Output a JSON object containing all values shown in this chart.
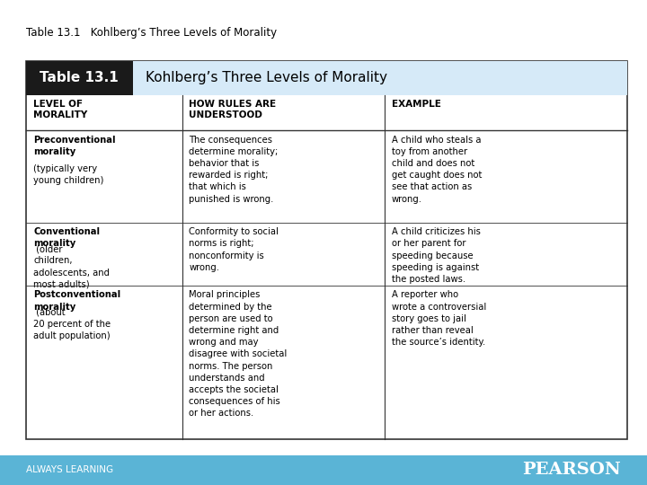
{
  "title_above": "Table 13.1   Kohlberg’s Three Levels of Morality",
  "header_box_label": "Table 13.1",
  "header_title": "Kohlberg’s Three Levels of Morality",
  "col_headers": [
    "LEVEL OF\nMORALITY",
    "HOW RULES ARE\nUNDERSTOOD",
    "EXAMPLE"
  ],
  "rows": [
    {
      "col1_bold": "Preconventional\nmorality",
      "col1_normal": "\n(typically very\nyoung children)",
      "col2": "The consequences\ndetermine morality;\nbehavior that is\nrewarded is right;\nthat which is\npunished is wrong.",
      "col3": "A child who steals a\ntoy from another\nchild and does not\nget caught does not\nsee that action as\nwrong."
    },
    {
      "col1_bold": "Conventional\nmorality",
      "col1_normal": " (older\nchildren,\nadolescents, and\nmost adults)",
      "col2": "Conformity to social\nnorms is right;\nnonconformity is\nwrong.",
      "col3": "A child criticizes his\nor her parent for\nspeeding because\nspeeding is against\nthe posted laws."
    },
    {
      "col1_bold": "Postconventional\nmorality",
      "col1_normal": " (about\n20 percent of the\nadult population)",
      "col2": "Moral principles\ndetermined by the\nperson are used to\ndetermine right and\nwrong and may\ndisagree with societal\nnorms. The person\nunderstands and\naccepts the societal\nconsequences of his\nor her actions.",
      "col3": "A reporter who\nwrote a controversial\nstory goes to jail\nrather than reveal\nthe source’s identity."
    }
  ],
  "header_box_color": "#1a1a1a",
  "header_title_bg": "#d6eaf8",
  "table_border_color": "#333333",
  "col_header_line_color": "#333333",
  "footer_bg": "#5ab4d6",
  "footer_text_left": "ALWAYS LEARNING",
  "footer_text_right": "PEARSON",
  "bg_color": "#ffffff",
  "font_size_title_above": 8.5,
  "font_size_header": 11,
  "font_size_col_header": 7.5,
  "font_size_body": 7.2,
  "font_size_footer": 7.5,
  "font_size_pearson": 14
}
